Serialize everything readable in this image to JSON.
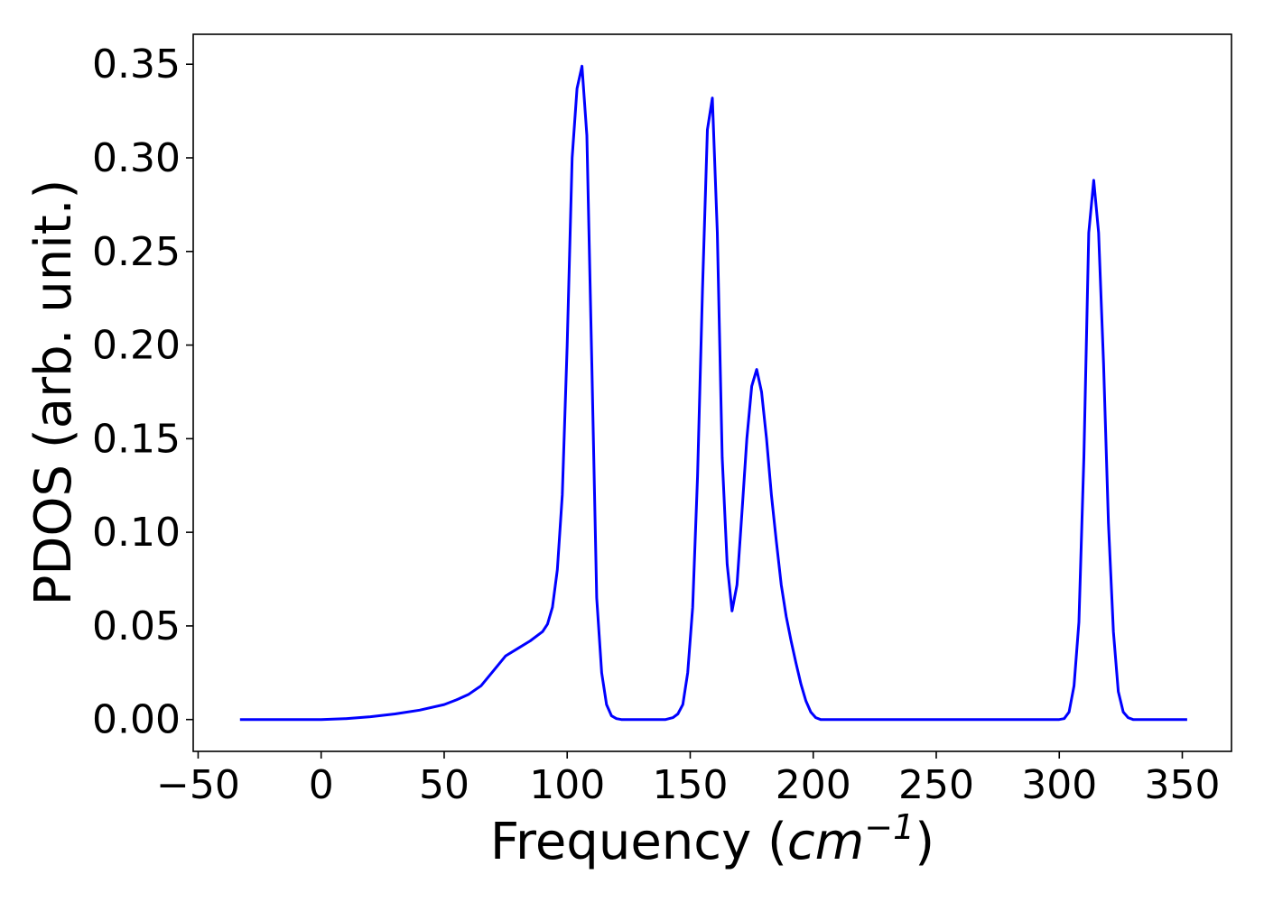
{
  "chart_data": {
    "type": "line",
    "title": "",
    "xlabel": "Frequency (",
    "xlabel_math": "cm",
    "xlabel_sup": "−1",
    "xlabel_close": ")",
    "ylabel": "PDOS (arb. unit.)",
    "xlim": [
      -52,
      370
    ],
    "ylim": [
      -0.017,
      0.366
    ],
    "grid": false,
    "xticks": [
      -50,
      0,
      50,
      100,
      150,
      200,
      250,
      300,
      350
    ],
    "xtick_labels": [
      "−50",
      "0",
      "50",
      "100",
      "150",
      "200",
      "250",
      "300",
      "350"
    ],
    "yticks": [
      0.0,
      0.05,
      0.1,
      0.15,
      0.2,
      0.25,
      0.3,
      0.35
    ],
    "ytick_labels": [
      "0.00",
      "0.05",
      "0.10",
      "0.15",
      "0.20",
      "0.25",
      "0.30",
      "0.35"
    ],
    "series": [
      {
        "color": "#0000ff",
        "x": [
          -33,
          0,
          10,
          20,
          30,
          40,
          50,
          55,
          60,
          65,
          70,
          75,
          80,
          85,
          90,
          92,
          94,
          96,
          98,
          100,
          102,
          104,
          106,
          108,
          110,
          112,
          114,
          116,
          118,
          120,
          122,
          124,
          126,
          130,
          140,
          143,
          145,
          147,
          149,
          151,
          153,
          155,
          157,
          159,
          161,
          163,
          165,
          167,
          169,
          171,
          173,
          175,
          177,
          179,
          181,
          183,
          185,
          187,
          189,
          191,
          193,
          195,
          197,
          199,
          201,
          203,
          210,
          250,
          300,
          302,
          304,
          306,
          308,
          310,
          312,
          314,
          316,
          318,
          320,
          322,
          324,
          326,
          328,
          330,
          340,
          352
        ],
        "y": [
          0.0,
          0.0,
          0.0005,
          0.0015,
          0.003,
          0.005,
          0.008,
          0.0105,
          0.0135,
          0.018,
          0.026,
          0.034,
          0.038,
          0.042,
          0.047,
          0.051,
          0.06,
          0.08,
          0.12,
          0.2,
          0.3,
          0.337,
          0.349,
          0.312,
          0.19,
          0.065,
          0.025,
          0.008,
          0.002,
          0.0005,
          0.0,
          0.0,
          0.0,
          0.0,
          0.0,
          0.001,
          0.003,
          0.008,
          0.025,
          0.06,
          0.13,
          0.23,
          0.315,
          0.332,
          0.26,
          0.14,
          0.083,
          0.058,
          0.072,
          0.11,
          0.15,
          0.178,
          0.187,
          0.175,
          0.15,
          0.12,
          0.095,
          0.072,
          0.055,
          0.042,
          0.03,
          0.019,
          0.01,
          0.004,
          0.001,
          0.0,
          0.0,
          0.0,
          0.0,
          0.0005,
          0.004,
          0.018,
          0.052,
          0.14,
          0.26,
          0.288,
          0.26,
          0.19,
          0.105,
          0.047,
          0.015,
          0.004,
          0.001,
          0.0,
          0.0,
          0.0
        ]
      }
    ]
  }
}
